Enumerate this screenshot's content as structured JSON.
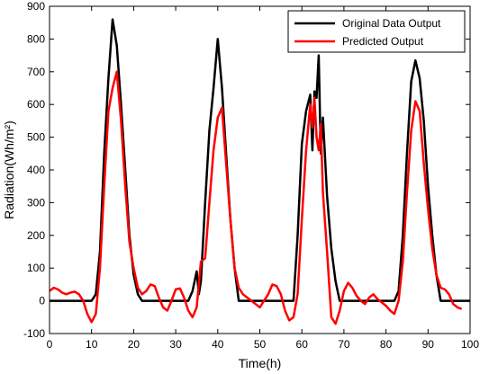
{
  "chart_data": {
    "type": "line",
    "xlabel": "Time(h)",
    "ylabel": "Radiation(Wh/m²)",
    "xlim": [
      0,
      100
    ],
    "ylim": [
      -100,
      900
    ],
    "xticks": [
      0,
      10,
      20,
      30,
      40,
      50,
      60,
      70,
      80,
      90,
      100
    ],
    "yticks": [
      -100,
      0,
      100,
      200,
      300,
      400,
      500,
      600,
      700,
      800,
      900
    ],
    "grid": false,
    "legend_position": "top-right",
    "series": [
      {
        "name": "Original Data Output",
        "color": "#000000",
        "points": [
          [
            0,
            0
          ],
          [
            10,
            0
          ],
          [
            11,
            20
          ],
          [
            12,
            150
          ],
          [
            13,
            450
          ],
          [
            14,
            680
          ],
          [
            15,
            860
          ],
          [
            16,
            780
          ],
          [
            17,
            600
          ],
          [
            18,
            400
          ],
          [
            19,
            200
          ],
          [
            20,
            80
          ],
          [
            21,
            20
          ],
          [
            22,
            0
          ],
          [
            33,
            0
          ],
          [
            34,
            30
          ],
          [
            35,
            90
          ],
          [
            35.5,
            20
          ],
          [
            36,
            60
          ],
          [
            37,
            300
          ],
          [
            38,
            520
          ],
          [
            39,
            650
          ],
          [
            40,
            800
          ],
          [
            41,
            650
          ],
          [
            42,
            450
          ],
          [
            43,
            250
          ],
          [
            44,
            100
          ],
          [
            45,
            0
          ],
          [
            58,
            0
          ],
          [
            59,
            200
          ],
          [
            60,
            480
          ],
          [
            61,
            580
          ],
          [
            62,
            630
          ],
          [
            62.5,
            460
          ],
          [
            63,
            640
          ],
          [
            63.5,
            620
          ],
          [
            64,
            750
          ],
          [
            64.5,
            450
          ],
          [
            65,
            560
          ],
          [
            66,
            320
          ],
          [
            67,
            160
          ],
          [
            68,
            60
          ],
          [
            69,
            0
          ],
          [
            82,
            0
          ],
          [
            83,
            30
          ],
          [
            84,
            200
          ],
          [
            85,
            450
          ],
          [
            86,
            670
          ],
          [
            87,
            735
          ],
          [
            88,
            680
          ],
          [
            89,
            550
          ],
          [
            90,
            350
          ],
          [
            91,
            200
          ],
          [
            92,
            80
          ],
          [
            93,
            0
          ],
          [
            100,
            0
          ]
        ]
      },
      {
        "name": "Predicted Output",
        "color": "#ff0000",
        "points": [
          [
            0,
            30
          ],
          [
            1,
            40
          ],
          [
            2,
            35
          ],
          [
            3,
            25
          ],
          [
            4,
            20
          ],
          [
            5,
            25
          ],
          [
            6,
            28
          ],
          [
            7,
            20
          ],
          [
            8,
            0
          ],
          [
            9,
            -40
          ],
          [
            10,
            -65
          ],
          [
            11,
            -40
          ],
          [
            12,
            100
          ],
          [
            13,
            350
          ],
          [
            14,
            580
          ],
          [
            15,
            650
          ],
          [
            16,
            700
          ],
          [
            17,
            550
          ],
          [
            18,
            350
          ],
          [
            19,
            180
          ],
          [
            20,
            100
          ],
          [
            21,
            40
          ],
          [
            22,
            20
          ],
          [
            23,
            30
          ],
          [
            24,
            50
          ],
          [
            25,
            45
          ],
          [
            26,
            10
          ],
          [
            27,
            -20
          ],
          [
            28,
            -30
          ],
          [
            29,
            0
          ],
          [
            30,
            35
          ],
          [
            31,
            38
          ],
          [
            32,
            10
          ],
          [
            33,
            -30
          ],
          [
            34,
            -50
          ],
          [
            35,
            -20
          ],
          [
            36,
            120
          ],
          [
            37,
            130
          ],
          [
            38,
            300
          ],
          [
            39,
            460
          ],
          [
            40,
            560
          ],
          [
            41,
            590
          ],
          [
            42,
            420
          ],
          [
            43,
            250
          ],
          [
            44,
            100
          ],
          [
            45,
            40
          ],
          [
            46,
            20
          ],
          [
            47,
            10
          ],
          [
            48,
            0
          ],
          [
            49,
            -10
          ],
          [
            50,
            -20
          ],
          [
            51,
            0
          ],
          [
            52,
            20
          ],
          [
            53,
            50
          ],
          [
            54,
            45
          ],
          [
            55,
            20
          ],
          [
            56,
            -30
          ],
          [
            57,
            -60
          ],
          [
            58,
            -50
          ],
          [
            59,
            20
          ],
          [
            60,
            250
          ],
          [
            61,
            460
          ],
          [
            62,
            600
          ],
          [
            62.5,
            530
          ],
          [
            63,
            620
          ],
          [
            63.5,
            500
          ],
          [
            64,
            460
          ],
          [
            64.5,
            540
          ],
          [
            65,
            330
          ],
          [
            66,
            150
          ],
          [
            67,
            -50
          ],
          [
            68,
            -70
          ],
          [
            69,
            -30
          ],
          [
            70,
            30
          ],
          [
            71,
            55
          ],
          [
            72,
            40
          ],
          [
            73,
            15
          ],
          [
            74,
            0
          ],
          [
            75,
            -10
          ],
          [
            76,
            10
          ],
          [
            77,
            20
          ],
          [
            78,
            5
          ],
          [
            79,
            -5
          ],
          [
            80,
            -15
          ],
          [
            81,
            -30
          ],
          [
            82,
            -40
          ],
          [
            83,
            0
          ],
          [
            84,
            120
          ],
          [
            85,
            330
          ],
          [
            86,
            520
          ],
          [
            87,
            610
          ],
          [
            88,
            580
          ],
          [
            89,
            420
          ],
          [
            90,
            280
          ],
          [
            91,
            160
          ],
          [
            92,
            80
          ],
          [
            93,
            40
          ],
          [
            94,
            35
          ],
          [
            95,
            20
          ],
          [
            96,
            -10
          ],
          [
            97,
            -20
          ],
          [
            98,
            -25
          ]
        ]
      }
    ]
  }
}
